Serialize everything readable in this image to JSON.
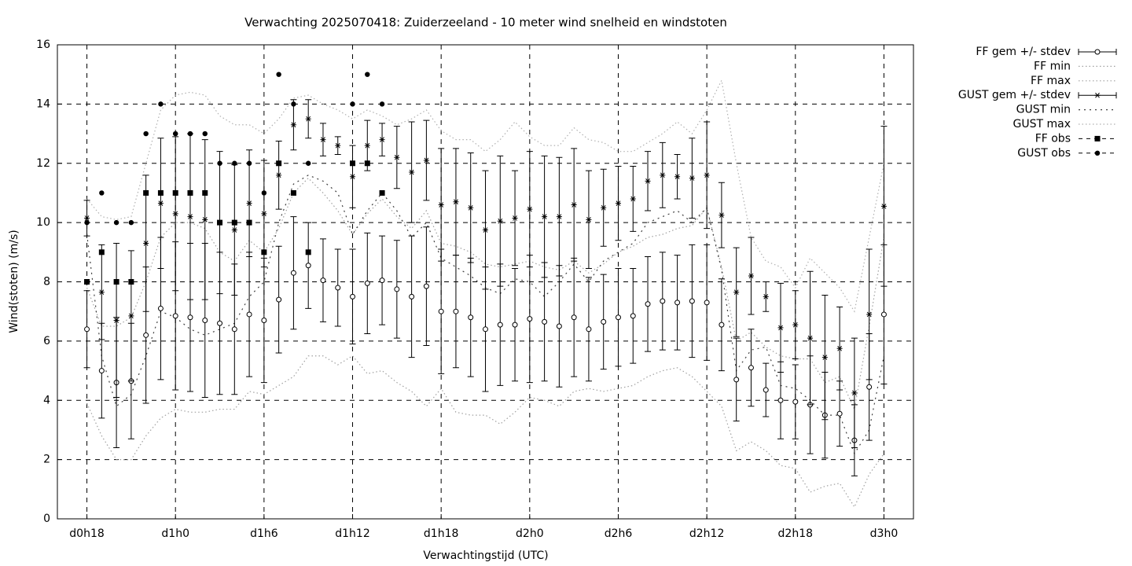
{
  "chart_data": {
    "type": "errorbar",
    "title": "Verwachting 2025070418: Zuiderzeeland - 10 meter wind snelheid en windstoten",
    "x_label": "Verwachtingstijd (UTC)",
    "y_label": "Wind(stoten) (m/s)",
    "x": [
      18,
      19,
      20,
      21,
      22,
      23,
      24,
      25,
      26,
      27,
      28,
      29,
      30,
      31,
      32,
      33,
      34,
      35,
      36,
      37,
      38,
      39,
      40,
      41,
      42,
      43,
      44,
      45,
      46,
      47,
      48,
      49,
      50,
      51,
      52,
      53,
      54,
      55,
      56,
      57,
      58,
      59,
      60,
      61,
      62,
      63,
      64,
      65,
      66,
      67,
      68,
      69,
      70,
      71,
      72
    ],
    "xlim": [
      16,
      74
    ],
    "xticks": [
      {
        "value": 18,
        "label": "d0h18"
      },
      {
        "value": 24,
        "label": "d1h0"
      },
      {
        "value": 30,
        "label": "d1h6"
      },
      {
        "value": 36,
        "label": "d1h12"
      },
      {
        "value": 42,
        "label": "d1h18"
      },
      {
        "value": 48,
        "label": "d2h0"
      },
      {
        "value": 54,
        "label": "d2h6"
      },
      {
        "value": 60,
        "label": "d2h12"
      },
      {
        "value": 66,
        "label": "d2h18"
      },
      {
        "value": 72,
        "label": "d3h0"
      }
    ],
    "ylim": [
      0,
      16
    ],
    "yticks": [
      0,
      2,
      4,
      6,
      8,
      10,
      12,
      14,
      16
    ],
    "grid": true,
    "legend": "outside-right",
    "series": [
      {
        "name": "FF gem +/- stdev",
        "style": "errorbar",
        "marker": "open-circle",
        "color": "#000000",
        "values": [
          6.4,
          5.0,
          4.6,
          4.65,
          6.2,
          7.1,
          6.85,
          6.8,
          6.7,
          6.6,
          6.4,
          6.9,
          6.7,
          7.4,
          8.3,
          8.55,
          8.05,
          7.8,
          7.5,
          7.95,
          8.05,
          7.75,
          7.5,
          7.85,
          7.0,
          7.0,
          6.8,
          6.4,
          6.55,
          6.55,
          6.75,
          6.65,
          6.5,
          6.8,
          6.4,
          6.65,
          6.8,
          6.85,
          7.25,
          7.35,
          7.3,
          7.35,
          7.3,
          6.55,
          4.7,
          5.1,
          4.35,
          4.0,
          3.95,
          3.85,
          3.5,
          3.55,
          2.65,
          4.45,
          6.9
        ],
        "errors": [
          1.3,
          1.6,
          2.2,
          1.95,
          2.3,
          2.4,
          2.5,
          2.5,
          2.6,
          2.4,
          2.2,
          2.1,
          2.1,
          1.8,
          1.9,
          1.45,
          1.4,
          1.3,
          1.6,
          1.7,
          1.5,
          1.65,
          2.05,
          2.0,
          2.1,
          1.9,
          2.0,
          2.1,
          2.05,
          1.9,
          2.15,
          2.0,
          2.05,
          2.0,
          1.75,
          1.6,
          1.65,
          1.6,
          1.6,
          1.65,
          1.6,
          1.9,
          1.95,
          1.55,
          1.4,
          1.3,
          0.9,
          1.3,
          1.25,
          1.65,
          1.45,
          1.1,
          1.2,
          1.8,
          2.35
        ]
      },
      {
        "name": "FF min",
        "style": "dotted",
        "color": "#a0a0a0",
        "values": [
          3.9,
          2.8,
          2.0,
          2.0,
          2.8,
          3.4,
          3.7,
          3.6,
          3.6,
          3.7,
          3.7,
          4.3,
          4.2,
          4.5,
          4.8,
          5.5,
          5.5,
          5.2,
          5.5,
          4.9,
          5.0,
          4.6,
          4.3,
          3.8,
          4.4,
          3.6,
          3.5,
          3.5,
          3.2,
          3.6,
          4.1,
          4.0,
          3.8,
          4.3,
          4.4,
          4.3,
          4.4,
          4.5,
          4.8,
          5.0,
          5.1,
          4.8,
          4.3,
          3.8,
          2.3,
          2.6,
          2.3,
          1.8,
          1.7,
          0.9,
          1.1,
          1.2,
          0.4,
          1.5,
          2.2
        ]
      },
      {
        "name": "FF max",
        "style": "dotted",
        "color": "#a0a0a0",
        "values": [
          7.8,
          6.5,
          6.5,
          6.8,
          8.0,
          9.5,
          10.0,
          10.0,
          9.8,
          9.0,
          8.7,
          9.4,
          9.0,
          9.8,
          11.0,
          11.5,
          11.0,
          10.4,
          9.6,
          10.3,
          10.8,
          10.2,
          9.8,
          10.4,
          9.3,
          9.2,
          9.0,
          8.6,
          8.5,
          8.6,
          8.7,
          8.5,
          8.4,
          8.7,
          8.3,
          8.6,
          9.0,
          9.2,
          9.5,
          9.6,
          9.8,
          9.9,
          10.5,
          8.5,
          6.0,
          6.3,
          5.8,
          5.5,
          5.4,
          5.4,
          4.6,
          4.8,
          3.7,
          6.5,
          9.5
        ]
      },
      {
        "name": "GUST gem +/- stdev",
        "style": "errorbar",
        "marker": "asterisk",
        "color": "#000000",
        "values": [
          10.15,
          7.65,
          6.7,
          6.85,
          9.3,
          10.65,
          10.3,
          10.2,
          10.1,
          10.0,
          9.75,
          10.65,
          10.3,
          11.6,
          13.3,
          13.5,
          12.8,
          12.6,
          11.55,
          12.6,
          12.8,
          12.2,
          11.7,
          12.1,
          10.6,
          10.7,
          10.5,
          9.75,
          10.05,
          10.15,
          10.45,
          10.2,
          10.2,
          10.6,
          10.1,
          10.5,
          10.65,
          10.8,
          11.4,
          11.6,
          11.55,
          11.5,
          11.6,
          10.25,
          7.65,
          8.2,
          7.5,
          6.45,
          6.55,
          6.1,
          5.45,
          5.75,
          4.25,
          6.9,
          10.55
        ],
        "errors": [
          0.6,
          1.6,
          2.6,
          2.2,
          2.3,
          2.2,
          2.6,
          2.8,
          2.7,
          2.4,
          2.2,
          1.8,
          1.8,
          1.15,
          0.85,
          0.65,
          0.55,
          0.3,
          1.05,
          0.85,
          0.55,
          1.05,
          1.7,
          1.35,
          1.9,
          1.8,
          1.85,
          2.0,
          2.2,
          1.6,
          1.95,
          2.05,
          2.0,
          1.9,
          1.65,
          1.3,
          1.25,
          1.1,
          1.0,
          1.1,
          0.75,
          1.35,
          1.8,
          1.1,
          1.5,
          1.3,
          0.5,
          1.5,
          1.15,
          2.25,
          2.1,
          1.4,
          1.85,
          2.2,
          2.7
        ]
      },
      {
        "name": "GUST min",
        "style": "dotted",
        "color": "#404040",
        "values": [
          9.6,
          5.5,
          3.8,
          4.2,
          5.5,
          7.0,
          6.8,
          6.4,
          6.2,
          6.4,
          6.6,
          7.5,
          8.0,
          10.0,
          11.3,
          11.6,
          11.4,
          11.0,
          9.6,
          10.4,
          11.0,
          10.4,
          9.5,
          10.0,
          8.8,
          8.5,
          8.2,
          7.8,
          7.6,
          8.1,
          8.0,
          7.5,
          8.0,
          8.6,
          8.0,
          8.7,
          9.0,
          9.3,
          10.0,
          10.2,
          10.4,
          10.0,
          10.5,
          8.4,
          5.0,
          5.7,
          5.8,
          4.5,
          4.4,
          4.0,
          3.5,
          3.5,
          2.2,
          3.0,
          5.5
        ]
      },
      {
        "name": "GUST max",
        "style": "dotted",
        "color": "#b0b0b0",
        "values": [
          10.8,
          10.2,
          10.1,
          10.2,
          12.0,
          13.8,
          14.3,
          14.4,
          14.3,
          13.6,
          13.3,
          13.3,
          13.0,
          13.5,
          14.2,
          14.3,
          14.0,
          13.8,
          13.5,
          13.8,
          13.6,
          13.3,
          13.5,
          13.8,
          13.1,
          12.8,
          12.8,
          12.4,
          12.8,
          13.4,
          12.9,
          12.6,
          12.6,
          13.2,
          12.8,
          12.7,
          12.4,
          12.4,
          12.7,
          13.0,
          13.4,
          13.0,
          13.8,
          14.8,
          12.0,
          9.5,
          8.7,
          8.5,
          7.8,
          8.8,
          8.3,
          7.8,
          7.0,
          9.5,
          12.0
        ]
      },
      {
        "name": "FF obs",
        "style": "points",
        "marker": "filled-square",
        "color": "#000000",
        "values": [
          8,
          9,
          8,
          8,
          11,
          11,
          11,
          11,
          11,
          10,
          10,
          10,
          9,
          12,
          11,
          9,
          null,
          null,
          12,
          12,
          11,
          null,
          null,
          null,
          null,
          null,
          null,
          null,
          null,
          null,
          null,
          null,
          null,
          null,
          null,
          null,
          null,
          null,
          null,
          null,
          null,
          null,
          null,
          null,
          null,
          null,
          null,
          null,
          null,
          null,
          null,
          null,
          null,
          null,
          null
        ]
      },
      {
        "name": "GUST obs",
        "style": "points",
        "marker": "filled-circle",
        "color": "#000000",
        "values": [
          10,
          11,
          10,
          10,
          13,
          14,
          13,
          13,
          13,
          12,
          12,
          12,
          11,
          15,
          14,
          12,
          null,
          null,
          14,
          15,
          14,
          null,
          null,
          null,
          null,
          null,
          null,
          null,
          null,
          null,
          null,
          null,
          null,
          null,
          null,
          null,
          null,
          null,
          null,
          null,
          null,
          null,
          null,
          null,
          null,
          null,
          null,
          null,
          null,
          null,
          null,
          null,
          null,
          null,
          null
        ]
      }
    ]
  }
}
